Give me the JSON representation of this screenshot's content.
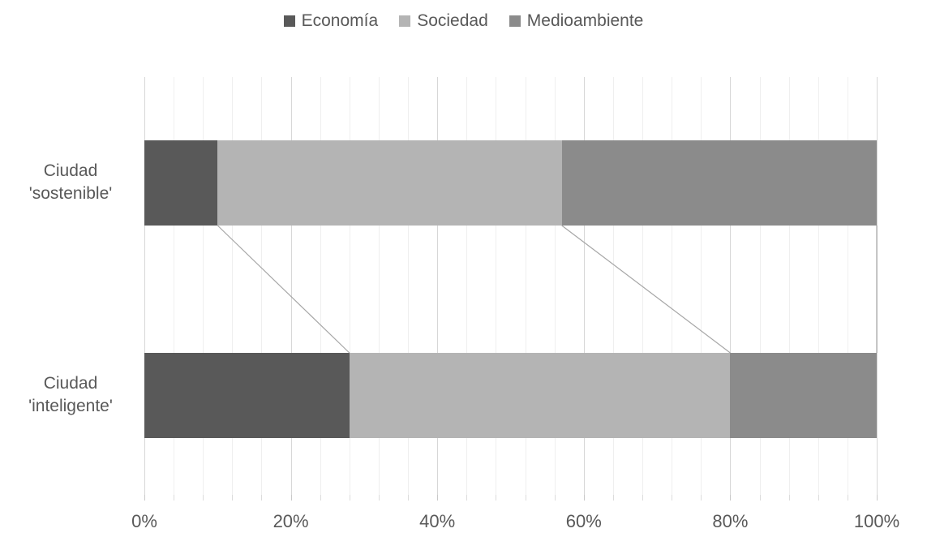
{
  "chart_data": {
    "type": "bar",
    "orientation": "horizontal",
    "stacked": "100%",
    "title": "",
    "categories": [
      {
        "line1": "Ciudad",
        "line2": "'sostenible'"
      },
      {
        "line1": "Ciudad",
        "line2": "'inteligente'"
      }
    ],
    "series": [
      {
        "name": "Economía",
        "color": "#595959",
        "values": [
          10,
          28
        ]
      },
      {
        "name": "Sociedad",
        "color": "#b4b4b4",
        "values": [
          47,
          52
        ]
      },
      {
        "name": "Medioambiente",
        "color": "#8b8b8b",
        "values": [
          43,
          20
        ]
      }
    ],
    "x_axis": {
      "min": 0,
      "max": 100,
      "major_step": 20,
      "minor_step": 4,
      "tick_labels": [
        "0%",
        "20%",
        "40%",
        "60%",
        "80%",
        "100%"
      ],
      "unit": "percent"
    },
    "legend_position": "top",
    "grid": {
      "minor": true,
      "major": true
    },
    "connector_lines": true,
    "styles": {
      "text_color": "#595959",
      "gridline_minor": "#efefef",
      "gridline_major": "#d7d7d7",
      "tick_color": "#c9c9c9",
      "connector_color": "#a6a6a6",
      "background": "#ffffff"
    }
  }
}
